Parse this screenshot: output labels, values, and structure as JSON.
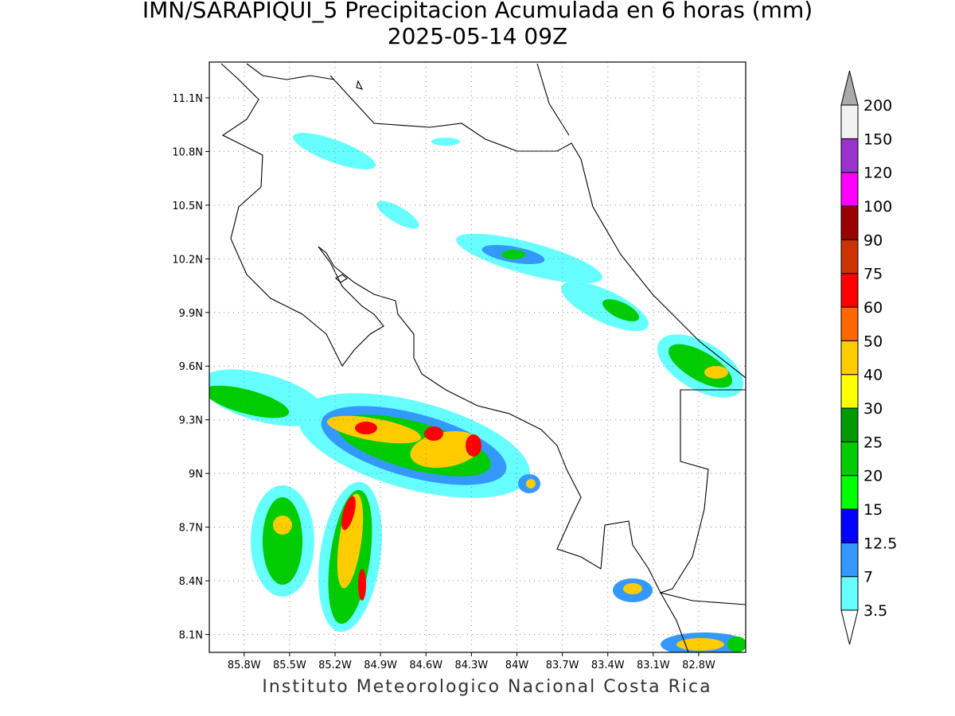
{
  "header": {
    "title": "IMN/SARAPIQUI_5 Precipitacion Acumulada en 6 horas (mm)",
    "subtitle": "2025-05-14 09Z"
  },
  "map": {
    "xlim": [
      -86.03,
      -82.49
    ],
    "ylim": [
      8.0,
      11.3
    ],
    "grid": true,
    "xticks": [
      {
        "value": -85.8,
        "label": "85.8W"
      },
      {
        "value": -85.5,
        "label": "85.5W"
      },
      {
        "value": -85.2,
        "label": "85.2W"
      },
      {
        "value": -84.9,
        "label": "84.9W"
      },
      {
        "value": -84.6,
        "label": "84.6W"
      },
      {
        "value": -84.3,
        "label": "84.3W"
      },
      {
        "value": -84,
        "label": "84W"
      },
      {
        "value": -83.7,
        "label": "83.7W"
      },
      {
        "value": -83.4,
        "label": "83.4W"
      },
      {
        "value": -83.1,
        "label": "83.1W"
      },
      {
        "value": -82.8,
        "label": "82.8W"
      }
    ],
    "yticks": [
      {
        "value": 8.1,
        "label": "8.1N"
      },
      {
        "value": 8.4,
        "label": "8.4N"
      },
      {
        "value": 8.7,
        "label": "8.7N"
      },
      {
        "value": 9,
        "label": "9N"
      },
      {
        "value": 9.3,
        "label": "9.3N"
      },
      {
        "value": 9.6,
        "label": "9.6N"
      },
      {
        "value": 9.9,
        "label": "9.9N"
      },
      {
        "value": 10.2,
        "label": "10.2N"
      },
      {
        "value": 10.5,
        "label": "10.5N"
      },
      {
        "value": 10.8,
        "label": "10.8N"
      },
      {
        "value": 11.1,
        "label": "11.1N"
      }
    ]
  },
  "colorbar": {
    "levels": [
      3.5,
      7,
      12.5,
      15,
      20,
      25,
      30,
      40,
      50,
      60,
      75,
      90,
      100,
      120,
      150,
      200
    ],
    "colors": [
      "#66ffff",
      "#3399ff",
      "#0000ff",
      "#00ff00",
      "#00cc00",
      "#009900",
      "#ffff00",
      "#ffcc00",
      "#ff6600",
      "#ff0000",
      "#cc3300",
      "#990000",
      "#ff00ff",
      "#9933cc",
      "#f2f2f2"
    ],
    "under_color": "#ffffff",
    "over_color": "#aaaaaa"
  },
  "footer": "Instituto Meteorologico Nacional Costa Rica"
}
